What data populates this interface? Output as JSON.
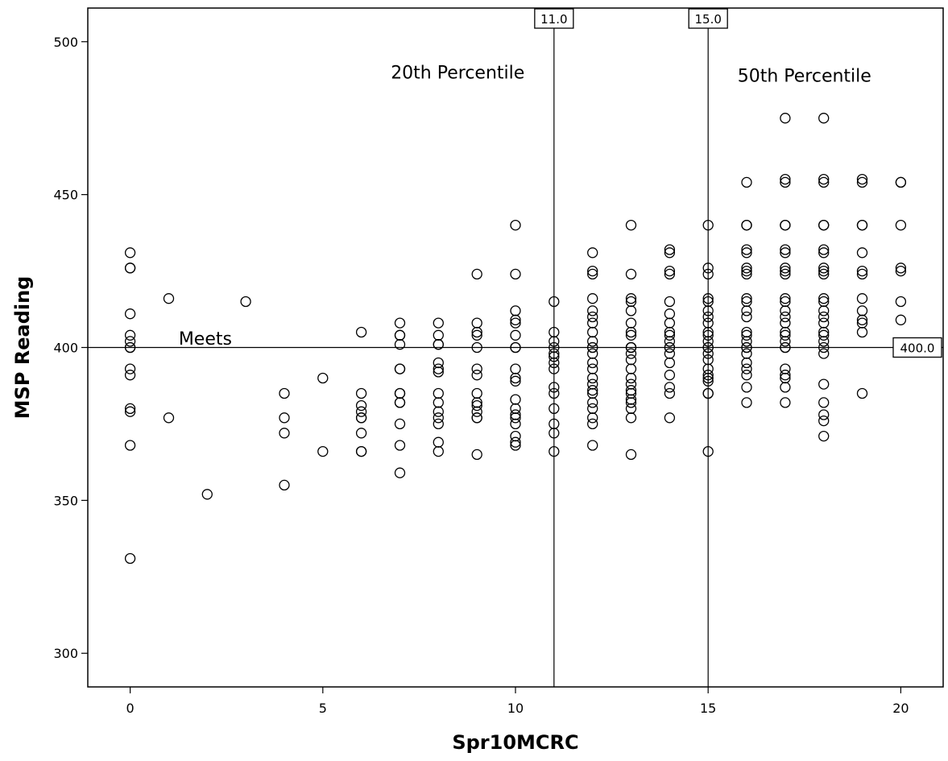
{
  "chart_data": {
    "type": "scatter",
    "xlabel": "Spr10MCRC",
    "ylabel": "MSP Reading",
    "xlim": [
      -1.1,
      21.1
    ],
    "ylim": [
      289,
      511
    ],
    "x_ticks": [
      0,
      5,
      10,
      15,
      20
    ],
    "y_ticks": [
      300,
      350,
      400,
      450,
      500
    ],
    "grid": false,
    "reference_lines": [
      {
        "orientation": "vertical",
        "value": 11,
        "label": "11.0"
      },
      {
        "orientation": "vertical",
        "value": 15,
        "label": "15.0"
      },
      {
        "orientation": "horizontal",
        "value": 400,
        "label": "400.0"
      }
    ],
    "annotations": [
      {
        "text": "20th Percentile",
        "x": 8.5,
        "y": 490
      },
      {
        "text": "50th Percentile",
        "x": 17.5,
        "y": 489
      },
      {
        "text": "Meets",
        "x": 1.95,
        "y": 403
      }
    ],
    "points": [
      [
        0,
        431
      ],
      [
        0,
        426
      ],
      [
        0,
        426
      ],
      [
        0,
        411
      ],
      [
        0,
        404
      ],
      [
        0,
        402
      ],
      [
        0,
        400
      ],
      [
        0,
        400
      ],
      [
        0,
        393
      ],
      [
        0,
        391
      ],
      [
        0,
        380
      ],
      [
        0,
        379
      ],
      [
        0,
        368
      ],
      [
        0,
        331
      ],
      [
        1,
        416
      ],
      [
        1,
        377
      ],
      [
        2,
        352
      ],
      [
        3,
        415
      ],
      [
        4,
        385
      ],
      [
        4,
        377
      ],
      [
        4,
        372
      ],
      [
        4,
        355
      ],
      [
        5,
        390
      ],
      [
        5,
        366
      ],
      [
        6,
        405
      ],
      [
        6,
        385
      ],
      [
        6,
        381
      ],
      [
        6,
        379
      ],
      [
        6,
        377
      ],
      [
        6,
        377
      ],
      [
        6,
        372
      ],
      [
        6,
        366
      ],
      [
        6,
        366
      ],
      [
        7,
        408
      ],
      [
        7,
        404
      ],
      [
        7,
        404
      ],
      [
        7,
        401
      ],
      [
        7,
        393
      ],
      [
        7,
        393
      ],
      [
        7,
        385
      ],
      [
        7,
        385
      ],
      [
        7,
        382
      ],
      [
        7,
        382
      ],
      [
        7,
        375
      ],
      [
        7,
        368
      ],
      [
        7,
        359
      ],
      [
        8,
        408
      ],
      [
        8,
        404
      ],
      [
        8,
        401
      ],
      [
        8,
        401
      ],
      [
        8,
        395
      ],
      [
        8,
        393
      ],
      [
        8,
        392
      ],
      [
        8,
        385
      ],
      [
        8,
        382
      ],
      [
        8,
        379
      ],
      [
        8,
        377
      ],
      [
        8,
        375
      ],
      [
        8,
        369
      ],
      [
        8,
        366
      ],
      [
        9,
        424
      ],
      [
        9,
        408
      ],
      [
        9,
        405
      ],
      [
        9,
        404
      ],
      [
        9,
        400
      ],
      [
        9,
        393
      ],
      [
        9,
        391
      ],
      [
        9,
        385
      ],
      [
        9,
        382
      ],
      [
        9,
        381
      ],
      [
        9,
        379
      ],
      [
        9,
        377
      ],
      [
        9,
        377
      ],
      [
        9,
        365
      ],
      [
        10,
        440
      ],
      [
        10,
        424
      ],
      [
        10,
        412
      ],
      [
        10,
        409
      ],
      [
        10,
        408
      ],
      [
        10,
        404
      ],
      [
        10,
        400
      ],
      [
        10,
        400
      ],
      [
        10,
        393
      ],
      [
        10,
        390
      ],
      [
        10,
        389
      ],
      [
        10,
        383
      ],
      [
        10,
        380
      ],
      [
        10,
        378
      ],
      [
        10,
        377
      ],
      [
        10,
        375
      ],
      [
        10,
        371
      ],
      [
        10,
        369
      ],
      [
        10,
        368
      ],
      [
        11,
        415
      ],
      [
        11,
        405
      ],
      [
        11,
        402
      ],
      [
        11,
        400
      ],
      [
        11,
        398
      ],
      [
        11,
        397
      ],
      [
        11,
        395
      ],
      [
        11,
        393
      ],
      [
        11,
        387
      ],
      [
        11,
        385
      ],
      [
        11,
        380
      ],
      [
        11,
        375
      ],
      [
        11,
        372
      ],
      [
        11,
        366
      ],
      [
        12,
        431
      ],
      [
        12,
        425
      ],
      [
        12,
        424
      ],
      [
        12,
        416
      ],
      [
        12,
        412
      ],
      [
        12,
        410
      ],
      [
        12,
        408
      ],
      [
        12,
        405
      ],
      [
        12,
        402
      ],
      [
        12,
        400
      ],
      [
        12,
        400
      ],
      [
        12,
        398
      ],
      [
        12,
        395
      ],
      [
        12,
        393
      ],
      [
        12,
        390
      ],
      [
        12,
        388
      ],
      [
        12,
        386
      ],
      [
        12,
        385
      ],
      [
        12,
        382
      ],
      [
        12,
        380
      ],
      [
        12,
        377
      ],
      [
        12,
        375
      ],
      [
        12,
        368
      ],
      [
        13,
        440
      ],
      [
        13,
        424
      ],
      [
        13,
        416
      ],
      [
        13,
        415
      ],
      [
        13,
        412
      ],
      [
        13,
        408
      ],
      [
        13,
        405
      ],
      [
        13,
        404
      ],
      [
        13,
        400
      ],
      [
        13,
        400
      ],
      [
        13,
        400
      ],
      [
        13,
        398
      ],
      [
        13,
        396
      ],
      [
        13,
        393
      ],
      [
        13,
        390
      ],
      [
        13,
        388
      ],
      [
        13,
        386
      ],
      [
        13,
        385
      ],
      [
        13,
        383
      ],
      [
        13,
        382
      ],
      [
        13,
        380
      ],
      [
        13,
        377
      ],
      [
        13,
        365
      ],
      [
        14,
        432
      ],
      [
        14,
        431
      ],
      [
        14,
        425
      ],
      [
        14,
        424
      ],
      [
        14,
        415
      ],
      [
        14,
        411
      ],
      [
        14,
        408
      ],
      [
        14,
        405
      ],
      [
        14,
        404
      ],
      [
        14,
        402
      ],
      [
        14,
        400
      ],
      [
        14,
        400
      ],
      [
        14,
        398
      ],
      [
        14,
        395
      ],
      [
        14,
        391
      ],
      [
        14,
        387
      ],
      [
        14,
        385
      ],
      [
        14,
        377
      ],
      [
        15,
        440
      ],
      [
        15,
        426
      ],
      [
        15,
        424
      ],
      [
        15,
        416
      ],
      [
        15,
        415
      ],
      [
        15,
        412
      ],
      [
        15,
        410
      ],
      [
        15,
        408
      ],
      [
        15,
        405
      ],
      [
        15,
        404
      ],
      [
        15,
        402
      ],
      [
        15,
        400
      ],
      [
        15,
        400
      ],
      [
        15,
        398
      ],
      [
        15,
        396
      ],
      [
        15,
        393
      ],
      [
        15,
        391
      ],
      [
        15,
        390
      ],
      [
        15,
        389
      ],
      [
        15,
        385
      ],
      [
        15,
        385
      ],
      [
        15,
        366
      ],
      [
        16,
        454
      ],
      [
        16,
        440
      ],
      [
        16,
        440
      ],
      [
        16,
        432
      ],
      [
        16,
        431
      ],
      [
        16,
        426
      ],
      [
        16,
        425
      ],
      [
        16,
        424
      ],
      [
        16,
        416
      ],
      [
        16,
        415
      ],
      [
        16,
        412
      ],
      [
        16,
        410
      ],
      [
        16,
        405
      ],
      [
        16,
        404
      ],
      [
        16,
        402
      ],
      [
        16,
        400
      ],
      [
        16,
        400
      ],
      [
        16,
        398
      ],
      [
        16,
        395
      ],
      [
        16,
        393
      ],
      [
        16,
        391
      ],
      [
        16,
        387
      ],
      [
        16,
        382
      ],
      [
        17,
        475
      ],
      [
        17,
        455
      ],
      [
        17,
        454
      ],
      [
        17,
        440
      ],
      [
        17,
        440
      ],
      [
        17,
        432
      ],
      [
        17,
        431
      ],
      [
        17,
        426
      ],
      [
        17,
        425
      ],
      [
        17,
        424
      ],
      [
        17,
        416
      ],
      [
        17,
        415
      ],
      [
        17,
        412
      ],
      [
        17,
        410
      ],
      [
        17,
        408
      ],
      [
        17,
        405
      ],
      [
        17,
        404
      ],
      [
        17,
        402
      ],
      [
        17,
        400
      ],
      [
        17,
        400
      ],
      [
        17,
        393
      ],
      [
        17,
        391
      ],
      [
        17,
        390
      ],
      [
        17,
        387
      ],
      [
        17,
        382
      ],
      [
        18,
        475
      ],
      [
        18,
        455
      ],
      [
        18,
        454
      ],
      [
        18,
        440
      ],
      [
        18,
        440
      ],
      [
        18,
        432
      ],
      [
        18,
        431
      ],
      [
        18,
        426
      ],
      [
        18,
        425
      ],
      [
        18,
        424
      ],
      [
        18,
        416
      ],
      [
        18,
        415
      ],
      [
        18,
        412
      ],
      [
        18,
        410
      ],
      [
        18,
        408
      ],
      [
        18,
        405
      ],
      [
        18,
        404
      ],
      [
        18,
        402
      ],
      [
        18,
        400
      ],
      [
        18,
        398
      ],
      [
        18,
        388
      ],
      [
        18,
        382
      ],
      [
        18,
        378
      ],
      [
        18,
        376
      ],
      [
        18,
        371
      ],
      [
        19,
        455
      ],
      [
        19,
        454
      ],
      [
        19,
        440
      ],
      [
        19,
        440
      ],
      [
        19,
        431
      ],
      [
        19,
        425
      ],
      [
        19,
        424
      ],
      [
        19,
        416
      ],
      [
        19,
        412
      ],
      [
        19,
        409
      ],
      [
        19,
        408
      ],
      [
        19,
        405
      ],
      [
        19,
        385
      ],
      [
        20,
        454
      ],
      [
        20,
        454
      ],
      [
        20,
        440
      ],
      [
        20,
        426
      ],
      [
        20,
        425
      ],
      [
        20,
        415
      ],
      [
        20,
        409
      ]
    ]
  }
}
